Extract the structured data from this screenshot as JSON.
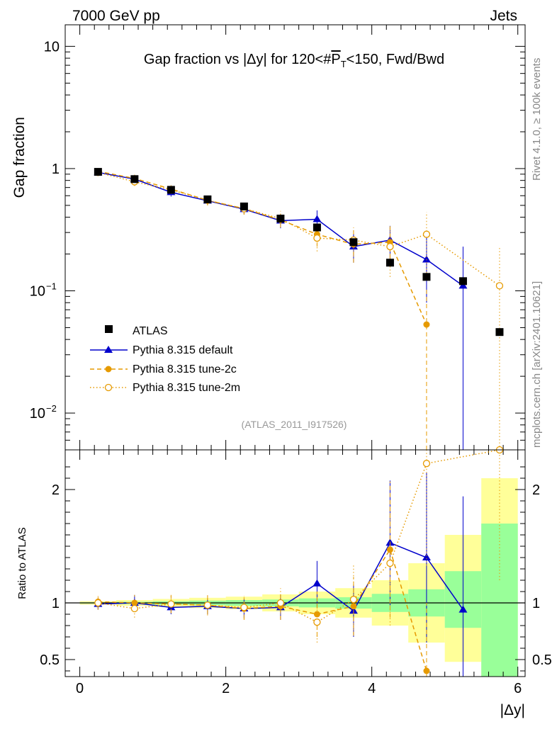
{
  "header": {
    "left_label": "7000 GeV pp",
    "right_label": "Jets",
    "side_label_top": "Rivet 4.1.0, ≥ 100k events",
    "side_label_bottom": "mcplots.cern.ch [arXiv:2401.10621]",
    "analysis_id": "(ATLAS_2011_I917526)"
  },
  "colors": {
    "atlas": "#000000",
    "default": "#0000cc",
    "tune2c": "#e69a00",
    "tune2m": "#e69a00",
    "band_yellow": "#ffff99",
    "band_green": "#99ff99"
  },
  "chart_data": [
    {
      "type": "scatter",
      "title_prefix": "Gap fraction vs |Δy| for 120<#",
      "title_sym": "P",
      "title_sub": "T",
      "title_suffix": "<150, Fwd/Bwd",
      "ylabel": "Gap fraction",
      "yscale": "log",
      "ylim": [
        0.005,
        15
      ],
      "xlim": [
        -0.2,
        6.1
      ],
      "y_ticks": [
        {
          "v": 10,
          "label": "10"
        },
        {
          "v": 1,
          "label": "1"
        },
        {
          "v": 0.1,
          "label": "10",
          "exp": "−1"
        },
        {
          "v": 0.01,
          "label": "10",
          "exp": "−2"
        }
      ],
      "legend": [
        {
          "key": "atlas",
          "label": "ATLAS"
        },
        {
          "key": "default",
          "label": "Pythia 8.315 default"
        },
        {
          "key": "tune2c",
          "label": "Pythia 8.315 tune-2c"
        },
        {
          "key": "tune2m",
          "label": "Pythia 8.315 tune-2m"
        }
      ],
      "series": [
        {
          "name": "ATLAS",
          "key": "atlas",
          "x": [
            0.25,
            0.75,
            1.25,
            1.75,
            2.25,
            2.75,
            3.25,
            3.75,
            4.25,
            4.75,
            5.25,
            5.75
          ],
          "y": [
            0.94,
            0.82,
            0.67,
            0.56,
            0.49,
            0.39,
            0.33,
            0.25,
            0.17,
            0.13,
            0.12,
            0.046
          ]
        },
        {
          "name": "Pythia 8.315 default",
          "key": "default",
          "x": [
            0.25,
            0.75,
            1.25,
            1.75,
            2.25,
            2.75,
            3.25,
            3.75,
            4.25,
            4.75,
            5.25
          ],
          "y": [
            0.93,
            0.82,
            0.64,
            0.545,
            0.465,
            0.375,
            0.385,
            0.23,
            0.26,
            0.18,
            0.11
          ],
          "err": [
            0.05,
            0.06,
            0.05,
            0.04,
            0.04,
            0.05,
            0.07,
            0.06,
            0.08,
            0.1,
            0.12
          ]
        },
        {
          "name": "Pythia 8.315 tune-2c",
          "key": "tune2c",
          "x": [
            0.25,
            0.75,
            1.25,
            1.75,
            2.25,
            2.75,
            3.25,
            3.75,
            4.25,
            4.75
          ],
          "y": [
            0.95,
            0.83,
            0.68,
            0.55,
            0.47,
            0.38,
            0.29,
            0.24,
            0.25,
            0.053
          ],
          "err": [
            0.05,
            0.06,
            0.05,
            0.05,
            0.05,
            0.05,
            0.06,
            0.07,
            0.09,
            0.05
          ]
        },
        {
          "name": "Pythia 8.315 tune-2m",
          "key": "tune2m",
          "x": [
            0.25,
            0.75,
            1.25,
            1.75,
            2.25,
            2.75,
            3.25,
            3.75,
            4.25,
            4.75,
            5.75
          ],
          "y": [
            0.93,
            0.78,
            0.67,
            0.55,
            0.47,
            0.39,
            0.27,
            0.26,
            0.23,
            0.29,
            0.11
          ],
          "err": [
            0.05,
            0.06,
            0.05,
            0.05,
            0.05,
            0.06,
            0.06,
            0.07,
            0.1,
            0.15,
            0.12
          ]
        }
      ]
    },
    {
      "type": "line",
      "ylabel": "Ratio to ATLAS",
      "xlabel": "|Δy|",
      "ylim": [
        0.35,
        2.35
      ],
      "xlim": [
        -0.2,
        6.1
      ],
      "x_ticks": [
        0,
        2,
        4,
        6
      ],
      "y_ticks": [
        0.5,
        1,
        2
      ],
      "bins": [
        [
          0,
          0.5
        ],
        [
          0.5,
          1
        ],
        [
          1,
          1.5
        ],
        [
          1.5,
          2
        ],
        [
          2,
          2.5
        ],
        [
          2.5,
          3
        ],
        [
          3,
          3.5
        ],
        [
          3.5,
          4
        ],
        [
          4,
          4.5
        ],
        [
          4.5,
          5
        ],
        [
          5,
          5.5
        ],
        [
          5.5,
          6
        ]
      ],
      "band_yellow": [
        [
          0.985,
          1.015
        ],
        [
          0.975,
          1.025
        ],
        [
          0.965,
          1.035
        ],
        [
          0.955,
          1.045
        ],
        [
          0.945,
          1.055
        ],
        [
          0.925,
          1.075
        ],
        [
          0.9,
          1.1
        ],
        [
          0.87,
          1.13
        ],
        [
          0.8,
          1.2
        ],
        [
          0.65,
          1.35
        ],
        [
          0.48,
          1.6
        ],
        [
          0.35,
          2.1
        ]
      ],
      "band_green": [
        [
          0.995,
          1.005
        ],
        [
          0.99,
          1.01
        ],
        [
          0.985,
          1.015
        ],
        [
          0.98,
          1.02
        ],
        [
          0.975,
          1.025
        ],
        [
          0.97,
          1.03
        ],
        [
          0.96,
          1.04
        ],
        [
          0.95,
          1.05
        ],
        [
          0.92,
          1.08
        ],
        [
          0.88,
          1.12
        ],
        [
          0.78,
          1.28
        ],
        [
          0.35,
          1.7
        ]
      ],
      "series": [
        {
          "name": "Pythia 8.315 default",
          "key": "default",
          "x": [
            0.25,
            0.75,
            1.25,
            1.75,
            2.25,
            2.75,
            3.25,
            3.75,
            4.25,
            4.75,
            5.25
          ],
          "y": [
            0.99,
            1.0,
            0.96,
            0.97,
            0.95,
            0.96,
            1.17,
            0.93,
            1.53,
            1.4,
            0.94
          ],
          "err": [
            0.05,
            0.07,
            0.06,
            0.07,
            0.08,
            0.11,
            0.2,
            0.23,
            0.55,
            0.75,
            1.0
          ]
        },
        {
          "name": "Pythia 8.315 tune-2c",
          "key": "tune2c",
          "x": [
            0.25,
            0.75,
            1.25,
            1.75,
            2.25,
            2.75,
            3.25,
            3.75,
            4.25,
            4.75
          ],
          "y": [
            1.01,
            1.0,
            0.99,
            0.98,
            0.95,
            0.97,
            0.9,
            0.97,
            1.47,
            0.4
          ],
          "err": [
            0.06,
            0.07,
            0.08,
            0.08,
            0.1,
            0.12,
            0.2,
            0.26,
            0.6,
            0.6
          ]
        },
        {
          "name": "Pythia 8.315 tune-2m",
          "key": "tune2m",
          "x": [
            0.25,
            0.75,
            1.25,
            1.75,
            2.25,
            2.75,
            3.25,
            3.75,
            4.25,
            4.75,
            5.75
          ],
          "y": [
            1.0,
            0.95,
            0.99,
            0.98,
            0.96,
            1.0,
            0.83,
            1.03,
            1.35,
            2.23,
            2.4
          ],
          "err": [
            0.06,
            0.08,
            0.08,
            0.09,
            0.1,
            0.13,
            0.18,
            0.3,
            0.55,
            0.9,
            1.2
          ]
        }
      ]
    }
  ]
}
